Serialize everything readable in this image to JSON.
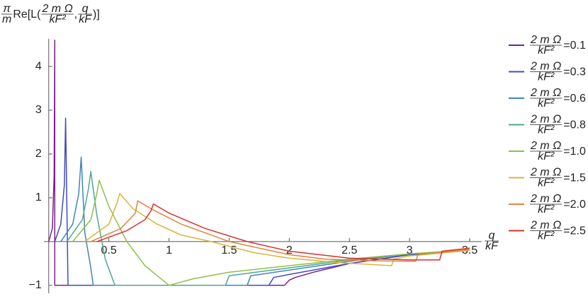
{
  "chart_data": {
    "type": "line",
    "y_label": [
      {
        "numerator": "π",
        "denominator": "m"
      },
      "Re[L(",
      {
        "numerator": "2 m Ω",
        "denominator": "kF²"
      },
      ",",
      {
        "numerator": "q",
        "denominator": "kF"
      },
      ")]"
    ],
    "x_label": {
      "numerator": "q",
      "denominator": "kF"
    },
    "legend_label": {
      "numerator": "2 m Ω",
      "denominator": "kF²"
    },
    "legend_position": "right",
    "xlim": [
      -0.04,
      3.6
    ],
    "ylim": [
      -1.18,
      4.63
    ],
    "xticks": [
      0.5,
      1.0,
      1.5,
      2.0,
      2.5,
      3.0,
      3.5
    ],
    "yticks": [
      {
        "value": -1,
        "label": "−1"
      },
      1,
      2,
      3,
      4
    ],
    "series": [
      {
        "name": "=0.1",
        "color": "#7b1f8f",
        "x": [
          0.0,
          0.03,
          0.045,
          0.05,
          0.05,
          1.96,
          2.0,
          2.05,
          2.2,
          2.5,
          3.0,
          3.5
        ],
        "values": [
          0,
          0.3,
          1.5,
          4.6,
          -1,
          -1,
          -0.88,
          -0.82,
          -0.7,
          -0.5,
          -0.3,
          -0.2
        ]
      },
      {
        "name": "=0.3",
        "color": "#3f4dbf",
        "x": [
          0.05,
          0.1,
          0.13,
          0.14,
          0.16,
          1.83,
          1.87,
          2.0,
          2.5,
          3.0,
          3.5
        ],
        "values": [
          0,
          0.4,
          1.3,
          2.82,
          -1,
          -1,
          -0.82,
          -0.75,
          -0.5,
          -0.3,
          -0.2
        ]
      },
      {
        "name": "=0.6",
        "color": "#3f86b8",
        "x": [
          0.1,
          0.2,
          0.25,
          0.27,
          0.3,
          0.35,
          0.37,
          1.65,
          1.68,
          2.0,
          2.5,
          3.0,
          3.5
        ],
        "values": [
          0,
          0.4,
          1.1,
          1.93,
          0.2,
          -0.6,
          -1,
          -1,
          -0.78,
          -0.65,
          -0.45,
          -0.28,
          -0.2
        ]
      },
      {
        "name": "=0.8",
        "color": "#4da88f",
        "x": [
          0.15,
          0.28,
          0.33,
          0.35,
          0.4,
          0.47,
          0.55,
          1.47,
          1.5,
          2.0,
          2.5,
          3.0,
          3.5
        ],
        "values": [
          0,
          0.5,
          1.2,
          1.6,
          0.6,
          -0.4,
          -1,
          -1,
          -0.78,
          -0.6,
          -0.42,
          -0.28,
          -0.19
        ]
      },
      {
        "name": "=1.0",
        "color": "#8fbf4a",
        "x": [
          0.2,
          0.35,
          0.4,
          0.42,
          0.5,
          0.65,
          0.8,
          1.0,
          1.2,
          1.5,
          2.0,
          2.5,
          3.0,
          3.5
        ],
        "values": [
          0,
          0.5,
          1.1,
          1.4,
          0.8,
          0,
          -0.55,
          -1,
          -0.85,
          -0.7,
          -0.55,
          -0.4,
          -0.28,
          -0.19
        ]
      },
      {
        "name": "=1.5",
        "color": "#d9b43c",
        "x": [
          0.3,
          0.5,
          0.57,
          0.59,
          0.7,
          0.9,
          1.1,
          1.35,
          1.7,
          2.0,
          2.4,
          2.85,
          2.87,
          3.0,
          3.5
        ],
        "values": [
          0,
          0.4,
          0.9,
          1.1,
          0.75,
          0.4,
          0.15,
          0,
          -0.25,
          -0.38,
          -0.48,
          -0.55,
          -0.4,
          -0.33,
          -0.2
        ]
      },
      {
        "name": "=2.0",
        "color": "#e3823a",
        "x": [
          0.35,
          0.6,
          0.72,
          0.74,
          0.85,
          1.1,
          1.5,
          2.0,
          2.3,
          2.7,
          3.05,
          3.07,
          3.2,
          3.5
        ],
        "values": [
          0,
          0.3,
          0.65,
          0.93,
          0.75,
          0.4,
          0,
          -0.3,
          -0.4,
          -0.44,
          -0.45,
          -0.3,
          -0.26,
          -0.18
        ]
      },
      {
        "name": "=2.5",
        "color": "#d7312e",
        "x": [
          0.4,
          0.65,
          0.8,
          0.85,
          0.87,
          1.0,
          1.3,
          1.65,
          2.0,
          2.5,
          3.0,
          3.25,
          3.27,
          3.5
        ],
        "values": [
          0,
          0.25,
          0.5,
          0.7,
          0.86,
          0.65,
          0.3,
          0,
          -0.22,
          -0.38,
          -0.42,
          -0.42,
          -0.22,
          -0.15
        ]
      }
    ]
  }
}
